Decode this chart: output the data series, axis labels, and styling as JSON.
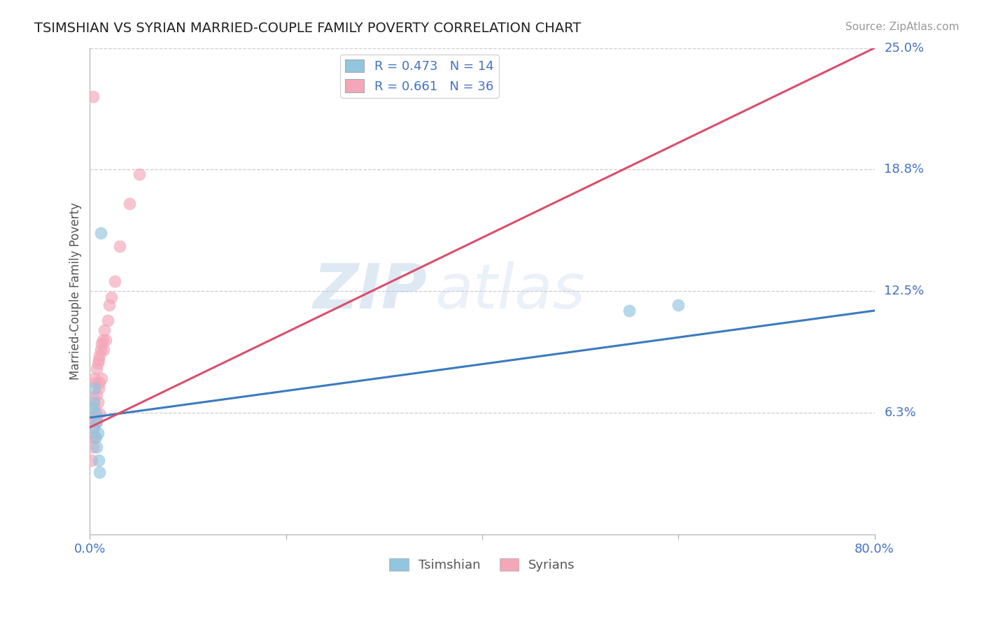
{
  "title": "TSIMSHIAN VS SYRIAN MARRIED-COUPLE FAMILY POVERTY CORRELATION CHART",
  "source": "Source: ZipAtlas.com",
  "ylabel": "Married-Couple Family Poverty",
  "xlabel_tsimshian": "Tsimshian",
  "xlabel_syrians": "Syrians",
  "xlim": [
    0.0,
    0.8
  ],
  "ylim": [
    0.0,
    0.25
  ],
  "color_blue": "#92c5de",
  "color_pink": "#f4a7b9",
  "color_line_blue": "#3a7bbf",
  "color_line_pink": "#d94f6b",
  "watermark_zip": "ZIP",
  "watermark_atlas": "atlas",
  "legend_blue": "R = 0.473   N = 14",
  "legend_pink": "R = 0.661   N = 36",
  "ytick_positions": [
    0.0625,
    0.125,
    0.1875,
    0.25
  ],
  "ytick_labels": [
    "6.3%",
    "12.5%",
    "18.8%",
    "25.0%"
  ],
  "xtick_positions": [
    0.0,
    0.2,
    0.4,
    0.6,
    0.8
  ],
  "xtick_labels": [
    "0.0%",
    "",
    "",
    "",
    "80.0%"
  ],
  "tsimshian_x": [
    0.002,
    0.004,
    0.004,
    0.005,
    0.006,
    0.006,
    0.007,
    0.007,
    0.008,
    0.009,
    0.01,
    0.011,
    0.55,
    0.6
  ],
  "tsimshian_y": [
    0.065,
    0.068,
    0.055,
    0.075,
    0.062,
    0.05,
    0.058,
    0.045,
    0.052,
    0.038,
    0.032,
    0.155,
    0.115,
    0.118
  ],
  "syrians_x": [
    0.002,
    0.002,
    0.003,
    0.003,
    0.004,
    0.004,
    0.005,
    0.005,
    0.005,
    0.006,
    0.006,
    0.007,
    0.007,
    0.007,
    0.008,
    0.008,
    0.009,
    0.009,
    0.01,
    0.01,
    0.01,
    0.011,
    0.012,
    0.012,
    0.013,
    0.014,
    0.015,
    0.016,
    0.018,
    0.02,
    0.022,
    0.025,
    0.03,
    0.04,
    0.05,
    0.003
  ],
  "syrians_y": [
    0.05,
    0.038,
    0.06,
    0.045,
    0.07,
    0.055,
    0.08,
    0.065,
    0.05,
    0.078,
    0.06,
    0.085,
    0.072,
    0.058,
    0.088,
    0.068,
    0.09,
    0.075,
    0.092,
    0.078,
    0.062,
    0.095,
    0.098,
    0.08,
    0.1,
    0.095,
    0.105,
    0.1,
    0.11,
    0.118,
    0.122,
    0.13,
    0.148,
    0.17,
    0.185,
    0.225
  ]
}
